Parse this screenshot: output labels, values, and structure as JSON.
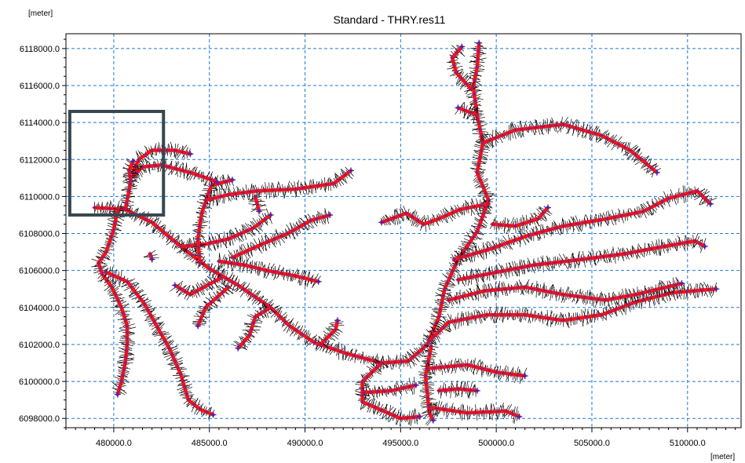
{
  "title": "Standard - THRY.res11",
  "y_unit_label": "[meter]",
  "x_unit_label": "[meter]",
  "colors": {
    "grid": "#1e78d8",
    "channel_center": "#ff1010",
    "cross_section_mark": "#2a2ad0",
    "cross_section_lines": "#000000",
    "frame": "#000000",
    "inset_box": "#37474f"
  },
  "chart_data": {
    "type": "map-network",
    "xlim": [
      477500,
      512800
    ],
    "ylim": [
      6097500,
      6118800
    ],
    "x_ticks": [
      480000,
      485000,
      490000,
      495000,
      500000,
      505000,
      510000
    ],
    "x_tick_labels": [
      "480000.0",
      "485000.0",
      "490000.0",
      "495000.0",
      "500000.0",
      "505000.0",
      "510000.0"
    ],
    "y_ticks": [
      6098000,
      6100000,
      6102000,
      6104000,
      6106000,
      6108000,
      6110000,
      6112000,
      6114000,
      6116000,
      6118000
    ],
    "y_tick_labels": [
      "6098000.0",
      "6100000.0",
      "6102000.0",
      "6104000.0",
      "6106000.0",
      "6108000.0",
      "6110000.0",
      "6112000.0",
      "6114000.0",
      "6116000.0",
      "6118000.0"
    ],
    "grid": true,
    "highlight_box": {
      "x": [
        477700,
        482600
      ],
      "y": [
        6109000,
        6114600
      ]
    },
    "branches": [
      [
        [
          479000,
          6109400
        ],
        [
          480600,
          6109300
        ],
        [
          482000,
          6108600
        ],
        [
          483500,
          6107300
        ],
        [
          485000,
          6106100
        ],
        [
          486500,
          6105200
        ],
        [
          488200,
          6104000
        ],
        [
          489200,
          6103000
        ],
        [
          490500,
          6102100
        ],
        [
          492200,
          6101500
        ],
        [
          494000,
          6101000
        ],
        [
          495400,
          6101100
        ],
        [
          496400,
          6102000
        ],
        [
          497000,
          6103500
        ],
        [
          497300,
          6105000
        ],
        [
          498000,
          6106600
        ],
        [
          499000,
          6108100
        ],
        [
          499600,
          6109800
        ],
        [
          499000,
          6111300
        ],
        [
          499300,
          6112900
        ],
        [
          499000,
          6114400
        ],
        [
          498800,
          6115900
        ],
        [
          499000,
          6117000
        ],
        [
          499100,
          6118300
        ]
      ],
      [
        [
          499300,
          6112900
        ],
        [
          501000,
          6113600
        ],
        [
          503500,
          6113900
        ],
        [
          505500,
          6113300
        ],
        [
          507000,
          6112500
        ],
        [
          508400,
          6111300
        ]
      ],
      [
        [
          499000,
          6114400
        ],
        [
          498000,
          6114800
        ]
      ],
      [
        [
          498700,
          6115800
        ],
        [
          497900,
          6116700
        ],
        [
          497700,
          6117500
        ],
        [
          498200,
          6118100
        ]
      ],
      [
        [
          496500,
          6102200
        ],
        [
          497500,
          6103200
        ],
        [
          499500,
          6103600
        ],
        [
          501500,
          6103600
        ],
        [
          503500,
          6103300
        ],
        [
          505500,
          6103600
        ],
        [
          507300,
          6104300
        ],
        [
          509200,
          6104800
        ],
        [
          511500,
          6105000
        ]
      ],
      [
        [
          497800,
          6106600
        ],
        [
          499500,
          6107100
        ],
        [
          501700,
          6107900
        ],
        [
          503500,
          6108400
        ],
        [
          505800,
          6108800
        ],
        [
          507700,
          6109200
        ],
        [
          509000,
          6109900
        ],
        [
          510500,
          6110300
        ],
        [
          511200,
          6109600
        ]
      ],
      [
        [
          498000,
          6105500
        ],
        [
          500000,
          6105900
        ],
        [
          502000,
          6106300
        ],
        [
          504500,
          6106600
        ],
        [
          506700,
          6106900
        ],
        [
          508800,
          6107300
        ],
        [
          510400,
          6107600
        ],
        [
          510900,
          6107300
        ]
      ],
      [
        [
          497500,
          6104400
        ],
        [
          499400,
          6104900
        ],
        [
          501500,
          6105100
        ],
        [
          503500,
          6104700
        ],
        [
          505700,
          6104400
        ],
        [
          507300,
          6104700
        ],
        [
          509700,
          6105300
        ]
      ],
      [
        [
          499600,
          6109600
        ],
        [
          498100,
          6109300
        ],
        [
          497000,
          6108800
        ],
        [
          496200,
          6108500
        ],
        [
          495300,
          6109100
        ],
        [
          494000,
          6108600
        ]
      ],
      [
        [
          499800,
          6108500
        ],
        [
          501000,
          6108400
        ],
        [
          502200,
          6108800
        ],
        [
          502700,
          6109400
        ]
      ],
      [
        [
          496600,
          6101900
        ],
        [
          496300,
          6100300
        ],
        [
          496500,
          6098300
        ],
        [
          496700,
          6097900
        ]
      ],
      [
        [
          496400,
          6100700
        ],
        [
          498500,
          6100900
        ],
        [
          500000,
          6100500
        ],
        [
          501500,
          6100300
        ]
      ],
      [
        [
          496500,
          6098600
        ],
        [
          498500,
          6098300
        ],
        [
          500500,
          6098400
        ],
        [
          501200,
          6098100
        ]
      ],
      [
        [
          497000,
          6099500
        ],
        [
          498000,
          6099600
        ],
        [
          499000,
          6099500
        ]
      ],
      [
        [
          494000,
          6101000
        ],
        [
          493000,
          6100000
        ],
        [
          493000,
          6098900
        ],
        [
          495000,
          6098000
        ],
        [
          496000,
          6098100
        ]
      ],
      [
        [
          493100,
          6099400
        ],
        [
          494500,
          6099500
        ],
        [
          495800,
          6099800
        ]
      ],
      [
        [
          490800,
          6102000
        ],
        [
          491600,
          6102800
        ],
        [
          491700,
          6103300
        ]
      ],
      [
        [
          488200,
          6104000
        ],
        [
          487400,
          6103500
        ],
        [
          487100,
          6102500
        ],
        [
          486500,
          6101800
        ]
      ],
      [
        [
          486000,
          6105100
        ],
        [
          484800,
          6104000
        ],
        [
          484400,
          6103000
        ]
      ],
      [
        [
          485600,
          6105600
        ],
        [
          484000,
          6104700
        ],
        [
          483200,
          6105200
        ]
      ],
      [
        [
          483500,
          6107300
        ],
        [
          484700,
          6107400
        ],
        [
          486000,
          6107700
        ],
        [
          487300,
          6108300
        ],
        [
          488200,
          6109000
        ]
      ],
      [
        [
          486200,
          6106700
        ],
        [
          487700,
          6107400
        ],
        [
          489100,
          6108000
        ],
        [
          490300,
          6108700
        ],
        [
          491300,
          6109000
        ]
      ],
      [
        [
          485500,
          6106500
        ],
        [
          486800,
          6106300
        ],
        [
          488000,
          6106000
        ],
        [
          489500,
          6105700
        ],
        [
          490700,
          6105400
        ]
      ],
      [
        [
          484500,
          6106400
        ],
        [
          484400,
          6107700
        ],
        [
          484600,
          6109100
        ],
        [
          485100,
          6110600
        ],
        [
          486200,
          6110900
        ]
      ],
      [
        [
          484800,
          6109800
        ],
        [
          486000,
          6110100
        ],
        [
          487500,
          6110300
        ],
        [
          489500,
          6110400
        ],
        [
          491500,
          6110700
        ],
        [
          492400,
          6111400
        ]
      ],
      [
        [
          487400,
          6110000
        ],
        [
          487600,
          6109200
        ]
      ],
      [
        [
          480600,
          6109300
        ],
        [
          480800,
          6110300
        ],
        [
          480900,
          6111000
        ],
        [
          481500,
          6111600
        ],
        [
          482500,
          6111700
        ],
        [
          484000,
          6111300
        ],
        [
          485400,
          6110800
        ]
      ],
      [
        [
          481000,
          6111300
        ],
        [
          481300,
          6112000
        ],
        [
          482000,
          6112500
        ],
        [
          483200,
          6112500
        ],
        [
          484000,
          6112300
        ]
      ],
      [
        [
          480900,
          6110800
        ],
        [
          480800,
          6111400
        ],
        [
          481000,
          6111900
        ]
      ],
      [
        [
          480200,
          6109300
        ],
        [
          480000,
          6108200
        ],
        [
          479600,
          6107000
        ],
        [
          479200,
          6106400
        ],
        [
          479400,
          6105800
        ],
        [
          479900,
          6105100
        ],
        [
          480400,
          6104000
        ],
        [
          480700,
          6103000
        ],
        [
          480700,
          6102000
        ],
        [
          480600,
          6101000
        ],
        [
          480400,
          6100000
        ],
        [
          480200,
          6099300
        ]
      ],
      [
        [
          479600,
          6105900
        ],
        [
          480700,
          6105400
        ],
        [
          481600,
          6104200
        ],
        [
          482300,
          6102900
        ],
        [
          482900,
          6101800
        ],
        [
          483500,
          6100400
        ],
        [
          483900,
          6099000
        ],
        [
          484500,
          6098500
        ],
        [
          485200,
          6098200
        ]
      ],
      [
        [
          481900,
          6106900
        ],
        [
          482000,
          6106600
        ]
      ]
    ]
  }
}
